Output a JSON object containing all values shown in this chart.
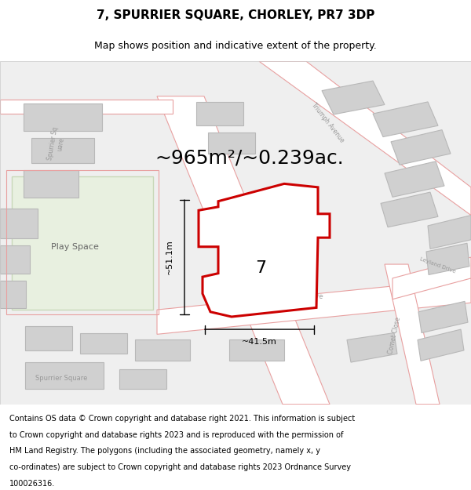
{
  "title": "7, SPURRIER SQUARE, CHORLEY, PR7 3DP",
  "subtitle": "Map shows position and indicative extent of the property.",
  "area_text": "~965m²/~0.239ac.",
  "dim_h": "~51.1m",
  "dim_w": "~41.5m",
  "number_label": "7",
  "footer_lines": [
    "Contains OS data © Crown copyright and database right 2021. This information is subject",
    "to Crown copyright and database rights 2023 and is reproduced with the permission of",
    "HM Land Registry. The polygons (including the associated geometry, namely x, y",
    "co-ordinates) are subject to Crown copyright and database rights 2023 Ordnance Survey",
    "100026316."
  ],
  "bg_color": "#ffffff",
  "road_fill": "#ffffff",
  "road_stroke": "#e8a0a0",
  "building_fill": "#d0d0d0",
  "building_stroke": "#b8b8b8",
  "green_fill": "#e8f0e0",
  "green_stroke": "#c8d8b8",
  "highlight_stroke": "#cc0000",
  "highlight_lw": 2.2,
  "title_fontsize": 11,
  "subtitle_fontsize": 9,
  "area_fontsize": 18,
  "label_fontsize": 16,
  "footer_fontsize": 7.0,
  "map_bg": "#eeeeee"
}
